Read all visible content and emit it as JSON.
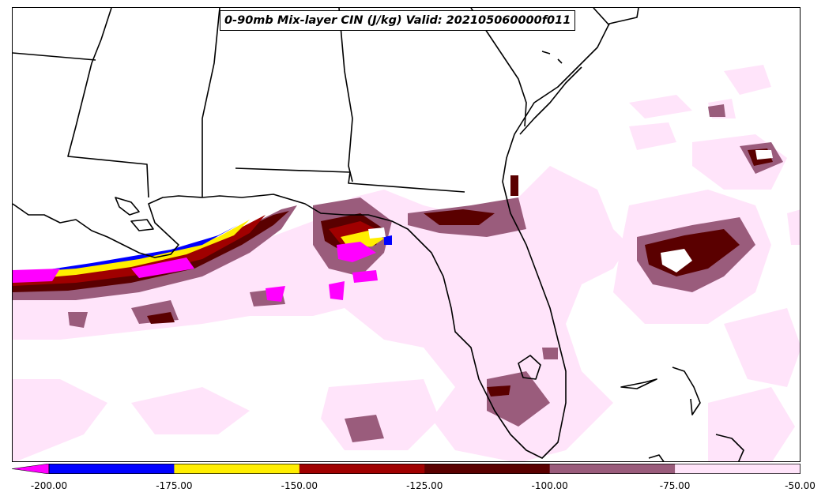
{
  "title": "0-90mb Mix-layer CIN (J/kg) Valid: 202105060000f011",
  "colorbar": {
    "levels": [
      "-200.00",
      "-175.00",
      "-150.00",
      "-125.00",
      "-100.00",
      "-75.00",
      "-50.00"
    ],
    "colors": [
      "#0000ff",
      "#ffee00",
      "#a00000",
      "#5a0000",
      "#9a5c7c",
      "#ffe4fa"
    ],
    "extend_color": "#ff00ff"
  },
  "map": {
    "region": "Southeastern United States, Gulf of Mexico, Florida",
    "field_colors": {
      "light": "#ffe4fa",
      "medium": "#9a5c7c",
      "dark": "#5a0000",
      "red": "#a00000",
      "yellow": "#ffee00",
      "blue": "#0000ff",
      "magenta": "#ff00ff"
    }
  }
}
